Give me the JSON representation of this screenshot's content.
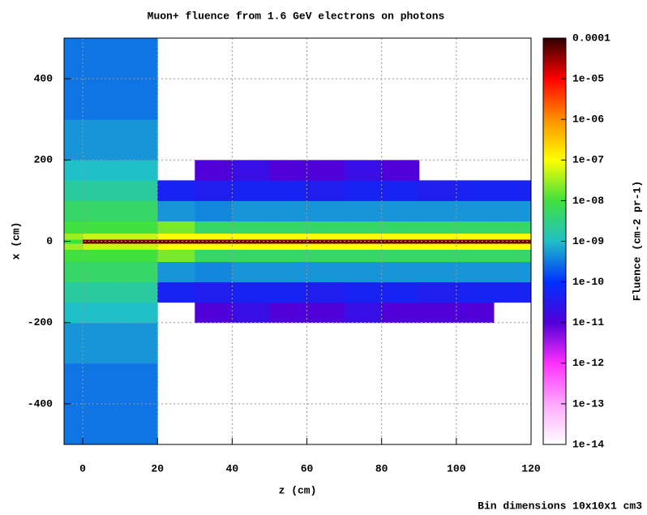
{
  "chart_data": {
    "type": "heatmap",
    "title": "Muon+ fluence from 1.6 GeV electrons on photons",
    "xlabel": "z (cm)",
    "ylabel": "x (cm)",
    "footnote": "Bin dimensions 10x10x1 cm3",
    "xlim": [
      -5,
      120
    ],
    "ylim": [
      -500,
      500
    ],
    "xticks": [
      0,
      20,
      40,
      60,
      80,
      100,
      120
    ],
    "yticks": [
      -400,
      -200,
      0,
      200,
      400
    ],
    "grid": true,
    "xbins": [
      -5,
      0,
      5,
      10,
      15,
      20,
      30,
      40,
      50,
      60,
      70,
      80,
      90,
      100,
      110,
      120
    ],
    "ybins": [
      -500,
      -300,
      -200,
      -150,
      -100,
      -50,
      -20,
      -5,
      5,
      20,
      50,
      100,
      150,
      200,
      300,
      500
    ],
    "values": [
      [
        3e-10,
        3e-10,
        3e-10,
        3e-10,
        3e-10,
        null,
        null,
        null,
        null,
        null,
        null,
        null,
        null,
        null,
        null
      ],
      [
        5e-10,
        5e-10,
        5e-10,
        5e-10,
        5e-10,
        null,
        null,
        null,
        null,
        null,
        null,
        null,
        null,
        null,
        null
      ],
      [
        1e-09,
        1e-09,
        1e-09,
        1e-09,
        1e-09,
        null,
        1e-11,
        2e-11,
        1e-11,
        1e-11,
        2e-11,
        1e-11,
        1e-11,
        1e-11,
        null
      ],
      [
        2e-09,
        2e-09,
        2e-09,
        2e-09,
        2e-09,
        5e-11,
        4e-11,
        5e-11,
        5e-11,
        4e-11,
        5e-11,
        5e-11,
        4e-11,
        5e-11,
        5e-11
      ],
      [
        5e-09,
        5e-09,
        5e-09,
        5e-09,
        5e-09,
        5e-10,
        4e-10,
        5e-10,
        5e-10,
        5e-10,
        5e-10,
        5e-10,
        5e-10,
        5e-10,
        5e-10
      ],
      [
        1e-08,
        1e-08,
        1e-08,
        1e-08,
        1e-08,
        2e-08,
        5e-09,
        5e-09,
        5e-09,
        5e-09,
        5e-09,
        5e-09,
        5e-09,
        5e-09,
        5e-09
      ],
      [
        3e-08,
        5e-08,
        5e-08,
        5e-08,
        5e-08,
        1e-07,
        1e-07,
        1e-07,
        1e-07,
        1e-07,
        1e-07,
        1e-07,
        1e-07,
        1e-07,
        1e-07
      ],
      [
        1e-08,
        5e-05,
        5e-05,
        5e-05,
        5e-05,
        5e-05,
        5e-05,
        5e-05,
        5e-05,
        5e-05,
        5e-05,
        5e-05,
        5e-05,
        5e-05,
        5e-05
      ],
      [
        3e-08,
        5e-08,
        5e-08,
        5e-08,
        5e-08,
        1e-07,
        1e-07,
        1e-07,
        1e-07,
        1e-07,
        1e-07,
        1e-07,
        1e-07,
        1e-07,
        1e-07
      ],
      [
        1e-08,
        1e-08,
        1e-08,
        1e-08,
        1e-08,
        2e-08,
        5e-09,
        5e-09,
        5e-09,
        5e-09,
        5e-09,
        5e-09,
        5e-09,
        5e-09,
        5e-09
      ],
      [
        5e-09,
        5e-09,
        5e-09,
        5e-09,
        5e-09,
        5e-10,
        4e-10,
        5e-10,
        5e-10,
        5e-10,
        5e-10,
        5e-10,
        5e-10,
        5e-10,
        5e-10
      ],
      [
        2e-09,
        2e-09,
        2e-09,
        2e-09,
        2e-09,
        5e-11,
        4e-11,
        5e-11,
        5e-11,
        4e-11,
        5e-11,
        5e-11,
        4e-11,
        5e-11,
        5e-11
      ],
      [
        1e-09,
        1e-09,
        1e-09,
        1e-09,
        1e-09,
        null,
        1e-11,
        2e-11,
        1e-11,
        1e-11,
        2e-11,
        1e-11,
        null,
        null,
        null
      ],
      [
        5e-10,
        5e-10,
        5e-10,
        5e-10,
        5e-10,
        null,
        null,
        null,
        null,
        null,
        null,
        null,
        null,
        null,
        null
      ],
      [
        3e-10,
        3e-10,
        3e-10,
        3e-10,
        3e-10,
        null,
        null,
        null,
        null,
        null,
        null,
        null,
        null,
        null,
        null
      ]
    ],
    "colorbar": {
      "label": "Fluence (cm-2 pr-1)",
      "log": true,
      "lim": [
        1e-14,
        0.0001
      ],
      "ticks": [
        0.0001,
        {
          "value": 1e-05,
          "label": "1e-05"
        },
        {
          "value": 1e-06,
          "label": "1e-06"
        },
        {
          "value": 1e-07,
          "label": "1e-07"
        },
        {
          "value": 1e-08,
          "label": "1e-08"
        },
        {
          "value": 1e-09,
          "label": "1e-09"
        },
        1e-10,
        1e-11,
        1e-12,
        1e-13,
        1e-14
      ],
      "colormap": [
        "#ffffff",
        "#ffa8ff",
        "#ff30ff",
        "#5000d8",
        "#0030ff",
        "#20c0c8",
        "#40e040",
        "#ffff00",
        "#ff9000",
        "#ff0000",
        "#300000"
      ]
    }
  }
}
